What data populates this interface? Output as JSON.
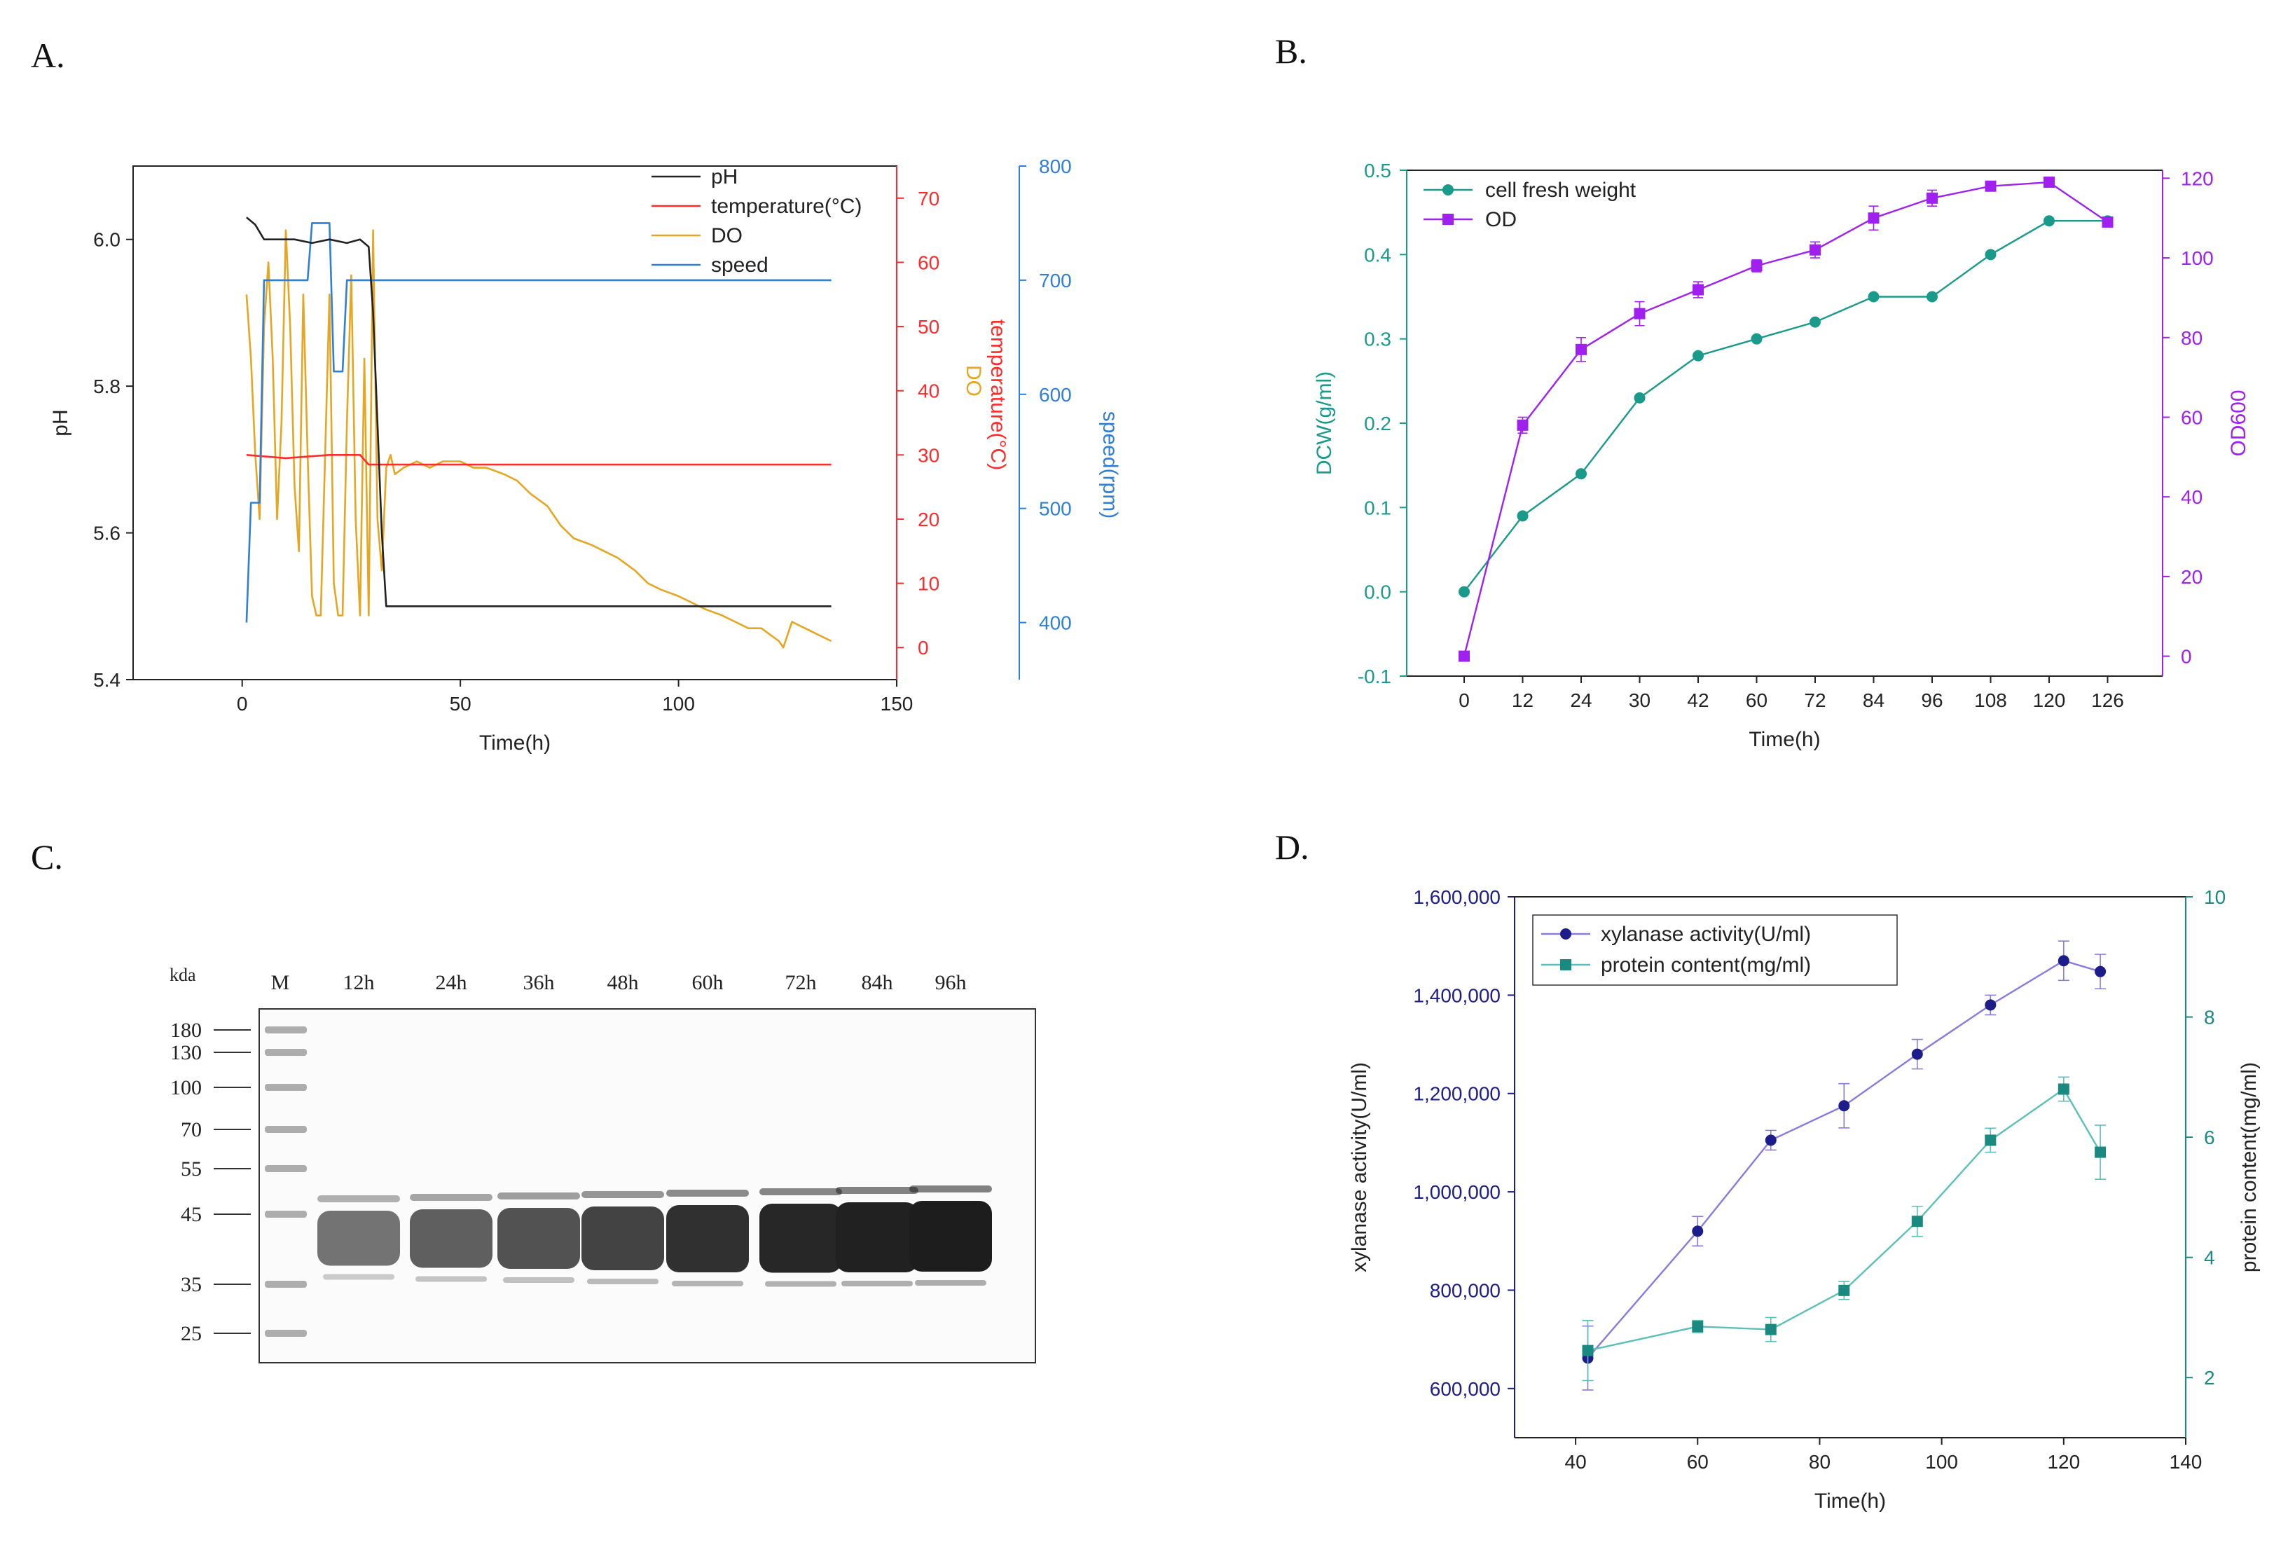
{
  "panels": {
    "a": "A.",
    "b": "B.",
    "c": "C.",
    "d": "D."
  },
  "chart_data": [
    {
      "id": "A",
      "type": "line",
      "xlabel": "Time(h)",
      "xlim": [
        -25,
        150
      ],
      "xticks": [
        0,
        50,
        100,
        150
      ],
      "axes": {
        "ph": {
          "label": "pH",
          "lim": [
            5.4,
            6.1
          ],
          "ticks": [
            5.4,
            5.6,
            5.8,
            6.0
          ],
          "color": "#222222"
        },
        "temp_do": {
          "label_do": "DO",
          "label_temp": "temperature(°C)",
          "lim": [
            -5,
            75
          ],
          "ticks": [
            0,
            10,
            20,
            30,
            40,
            50,
            60,
            70
          ],
          "color": "#ff2a2a"
        },
        "speed": {
          "label": "speed(rpm)",
          "lim": [
            350,
            800
          ],
          "ticks": [
            400,
            500,
            600,
            700,
            800
          ],
          "color": "#2f7fd8"
        }
      },
      "legend_position": "top-right",
      "series": [
        {
          "name": "pH",
          "axis": "ph",
          "color": "#222222",
          "x": [
            1,
            3,
            5,
            8,
            12,
            16,
            20,
            24,
            27,
            29,
            30,
            31,
            32,
            33,
            40,
            60,
            80,
            100,
            120,
            135
          ],
          "y": [
            6.03,
            6.02,
            6.0,
            6.0,
            6.0,
            5.995,
            6.0,
            5.995,
            6.0,
            5.99,
            5.9,
            5.75,
            5.6,
            5.5,
            5.5,
            5.5,
            5.5,
            5.5,
            5.5,
            5.5
          ]
        },
        {
          "name": "temperature(°C)",
          "axis": "temp_do",
          "color": "#ff2a2a",
          "x": [
            1,
            10,
            20,
            27,
            29,
            135
          ],
          "y": [
            30,
            29.5,
            30,
            30,
            28.5,
            28.5
          ]
        },
        {
          "name": "DO",
          "axis": "temp_do",
          "color": "#e6a622",
          "x": [
            1,
            2,
            3,
            4,
            5,
            6,
            7,
            8,
            9,
            10,
            11,
            12,
            13,
            14,
            15,
            16,
            17,
            18,
            19,
            20,
            21,
            22,
            23,
            24,
            25,
            26,
            27,
            28,
            29,
            30,
            31,
            32,
            33,
            34,
            35,
            37,
            40,
            43,
            46,
            50,
            53,
            56,
            60,
            63,
            66,
            70,
            73,
            76,
            80,
            83,
            86,
            90,
            93,
            96,
            100,
            103,
            106,
            110,
            113,
            116,
            119,
            121,
            123,
            124,
            126,
            129,
            132,
            135
          ],
          "y": [
            55,
            45,
            30,
            20,
            50,
            60,
            45,
            20,
            35,
            65,
            50,
            25,
            15,
            55,
            30,
            8,
            5,
            5,
            30,
            55,
            10,
            5,
            5,
            35,
            58,
            20,
            5,
            45,
            5,
            65,
            20,
            12,
            28,
            30,
            27,
            28,
            29,
            28,
            29,
            29,
            28,
            28,
            27,
            26,
            24,
            22,
            19,
            17,
            16,
            15,
            14,
            12,
            10,
            9,
            8,
            7,
            6,
            5,
            4,
            3,
            3,
            2,
            1,
            0,
            4,
            3,
            2,
            1
          ]
        },
        {
          "name": "speed",
          "axis": "speed",
          "color": "#2f7fd8",
          "x": [
            1,
            2,
            3,
            4,
            5,
            6,
            14,
            15,
            16,
            17,
            18,
            19,
            20,
            21,
            22,
            23,
            24,
            25,
            26,
            27,
            135
          ],
          "y": [
            400,
            505,
            505,
            505,
            700,
            700,
            700,
            700,
            750,
            750,
            750,
            750,
            750,
            620,
            620,
            620,
            700,
            700,
            700,
            700,
            700
          ]
        }
      ]
    },
    {
      "id": "B",
      "type": "line",
      "xlabel": "Time(h)",
      "ylabel": "DCW(g/ml)",
      "y2label": "OD600",
      "categories": [
        "0",
        "12",
        "24",
        "30",
        "42",
        "60",
        "72",
        "84",
        "96",
        "108",
        "120",
        "126"
      ],
      "ylim": [
        -0.1,
        0.5
      ],
      "yticks": [
        -0.1,
        0.0,
        0.1,
        0.2,
        0.3,
        0.4,
        0.5
      ],
      "y2lim": [
        -5,
        122
      ],
      "y2ticks": [
        0,
        20,
        40,
        60,
        80,
        100,
        120
      ],
      "legend_position": "top-left",
      "series": [
        {
          "name": "cell fresh weight",
          "axis": "left",
          "color": "#1a9a8a",
          "values": [
            0.0,
            0.09,
            0.14,
            0.23,
            0.28,
            0.3,
            0.32,
            0.35,
            0.35,
            0.4,
            0.44,
            0.44
          ]
        },
        {
          "name": "OD",
          "axis": "right",
          "color": "#a020f0",
          "values": [
            0,
            58,
            77,
            86,
            92,
            98,
            102,
            110,
            115,
            118,
            119,
            109
          ],
          "err": [
            0,
            2,
            3,
            3,
            2,
            1.5,
            2,
            3,
            2,
            1,
            1,
            1
          ]
        }
      ]
    },
    {
      "id": "C",
      "type": "gel",
      "unit_label": "kda",
      "markers": [
        "180",
        "130",
        "100",
        "70",
        "55",
        "45",
        "35",
        "25"
      ],
      "lanes": [
        "M",
        "12h",
        "24h",
        "36h",
        "48h",
        "60h",
        "72h",
        "84h",
        "96h"
      ],
      "band_intensity": [
        0,
        0.45,
        0.55,
        0.62,
        0.7,
        0.8,
        0.85,
        0.88,
        0.9
      ]
    },
    {
      "id": "D",
      "type": "line",
      "xlabel": "Time(h)",
      "ylabel": "xylanase activity(U/ml)",
      "y2label": "protein content(mg/ml)",
      "xlim": [
        30,
        140
      ],
      "xticks": [
        40,
        60,
        80,
        100,
        120,
        140
      ],
      "ylim": [
        500000,
        1600000
      ],
      "yticks": [
        600000,
        800000,
        1000000,
        1200000,
        1400000,
        1600000
      ],
      "ytick_labels": [
        "600,000",
        "800,000",
        "1,000,000",
        "1,200,000",
        "1,400,000",
        "1,600,000"
      ],
      "y2lim": [
        1,
        10
      ],
      "y2ticks": [
        2,
        4,
        6,
        8,
        10
      ],
      "legend_position": "top-left",
      "series": [
        {
          "name": "xylanase activity(U/ml)",
          "axis": "left",
          "color": "#1c1c8a",
          "line_color": "#8a7ae0",
          "x": [
            42,
            60,
            72,
            84,
            96,
            108,
            120,
            126
          ],
          "y": [
            662000,
            920000,
            1105000,
            1175000,
            1280000,
            1380000,
            1470000,
            1448000
          ],
          "err": [
            65000,
            30000,
            20000,
            45000,
            30000,
            20000,
            40000,
            35000
          ]
        },
        {
          "name": "protein content(mg/ml)",
          "axis": "right",
          "color": "#1a8a80",
          "line_color": "#5bc0b8",
          "x": [
            42,
            60,
            72,
            84,
            96,
            108,
            120,
            126
          ],
          "y": [
            2.45,
            2.85,
            2.8,
            3.45,
            4.6,
            5.95,
            6.8,
            5.75
          ],
          "err": [
            0.5,
            0.1,
            0.2,
            0.15,
            0.25,
            0.2,
            0.2,
            0.45
          ]
        }
      ]
    }
  ]
}
